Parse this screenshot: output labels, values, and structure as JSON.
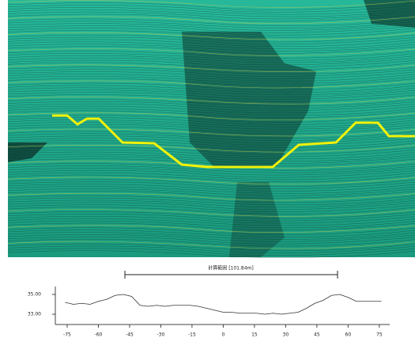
{
  "chart_data": {
    "type": "line",
    "annotation": "計算範囲 [101.84m]",
    "x": [
      -76,
      -72,
      -68,
      -64,
      -60,
      -56,
      -52,
      -48,
      -44,
      -40,
      -36,
      -32,
      -28,
      -24,
      -20,
      -16,
      -12,
      -8,
      -4,
      0,
      4,
      8,
      12,
      16,
      20,
      24,
      28,
      32,
      36,
      40,
      44,
      48,
      52,
      56,
      60,
      64,
      68,
      72,
      76
    ],
    "values": [
      34.2,
      34.0,
      34.1,
      34.0,
      34.3,
      34.5,
      34.9,
      35.0,
      34.8,
      33.9,
      33.8,
      33.9,
      33.8,
      33.9,
      33.9,
      33.9,
      33.8,
      33.6,
      33.4,
      33.2,
      33.2,
      33.1,
      33.1,
      33.1,
      33.0,
      33.1,
      33.0,
      33.1,
      33.2,
      33.6,
      34.1,
      34.4,
      34.9,
      35.0,
      34.7,
      34.3,
      34.3,
      34.3,
      34.3
    ],
    "color": "#333333",
    "xlim": [
      -80,
      80
    ],
    "xticks": [
      -75,
      -60,
      -45,
      -30,
      -15,
      0,
      15,
      30,
      45,
      60,
      75
    ],
    "ylim": [
      32,
      35.8
    ],
    "yticks": [
      {
        "value": 35,
        "label": "35.00"
      },
      {
        "value": 33,
        "label": "33.00"
      }
    ]
  }
}
